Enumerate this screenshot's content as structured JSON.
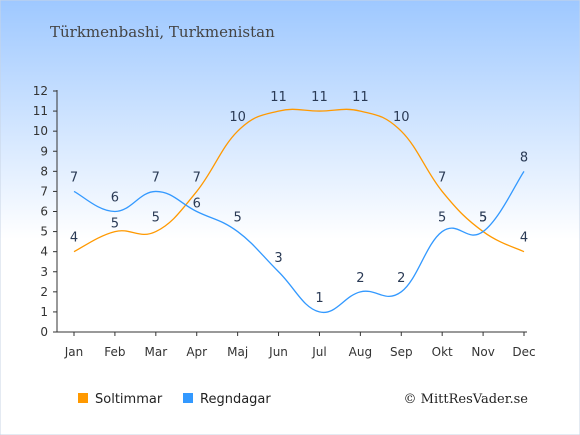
{
  "chart_data": {
    "type": "line",
    "title": "Türkmenbashi, Turkmenistan",
    "categories": [
      "Jan",
      "Feb",
      "Mar",
      "Apr",
      "Maj",
      "Jun",
      "Jul",
      "Aug",
      "Sep",
      "Okt",
      "Nov",
      "Dec"
    ],
    "y_ticks": [
      "0",
      "1",
      "2",
      "3",
      "4",
      "5",
      "6",
      "7",
      "8",
      "9",
      "10",
      "11",
      "12"
    ],
    "ylim": [
      0,
      12
    ],
    "grid": false,
    "legend_position": "bottom-left",
    "series": [
      {
        "name": "Soltimmar",
        "color": "#ff9900",
        "values": [
          4,
          5,
          5,
          7,
          10,
          11,
          11,
          11,
          10,
          7,
          5,
          4
        ]
      },
      {
        "name": "Regndagar",
        "color": "#3399ff",
        "values": [
          7,
          6,
          7,
          6,
          5,
          3,
          1,
          2,
          2,
          5,
          5,
          8
        ]
      }
    ],
    "credit": "© MittResVader.se"
  },
  "colors": {
    "background_top": "#9ec8ff",
    "background_bottom": "#ffffff",
    "axis": "#333333"
  }
}
